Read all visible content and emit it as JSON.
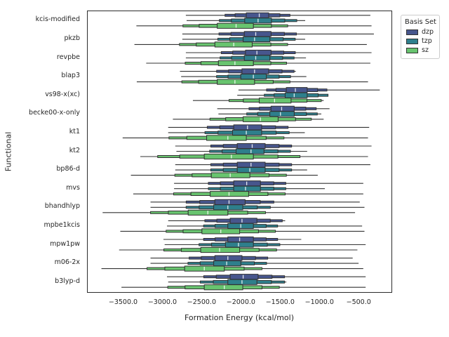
{
  "figure": {
    "background": "#ffffff",
    "spine_color": "#2b2b2b",
    "text_color": "#262626"
  },
  "chart_data": {
    "type": "boxen",
    "orientation": "horizontal",
    "title": "",
    "xlabel": "Formation Energy (kcal/mol)",
    "ylabel": "Functional",
    "grid": false,
    "xlim": [
      -3960,
      -100
    ],
    "xticks": [
      {
        "label": "−3500.0",
        "value": -3500
      },
      {
        "label": "−3000.0",
        "value": -3000
      },
      {
        "label": "−2500.0",
        "value": -2500
      },
      {
        "label": "−2000.0",
        "value": -2000
      },
      {
        "label": "−1500.0",
        "value": -1500
      },
      {
        "label": "−1000.0",
        "value": -1000
      },
      {
        "label": "−500.0",
        "value": -500
      }
    ],
    "categories": [
      "kcis-modified",
      "pkzb",
      "revpbe",
      "blap3",
      "vs98-x(xc)",
      "becke00-x-only",
      "kt1",
      "kt2",
      "bp86-d",
      "mvs",
      "bhandhlyp",
      "mpbe1kcis",
      "mpw1pw",
      "m06-2x",
      "b3lyp-d"
    ],
    "value_keys": [
      "whisker_low",
      "q1",
      "median",
      "q3",
      "whisker_high"
    ],
    "series": [
      {
        "name": "dzp",
        "color": "#47568d",
        "values": [
          [
            -2710,
            -1940,
            -1775,
            -1655,
            -360
          ],
          [
            -2755,
            -1965,
            -1820,
            -1625,
            -315
          ],
          [
            -2710,
            -1950,
            -1805,
            -1625,
            -345
          ],
          [
            -2785,
            -1995,
            -1835,
            -1655,
            -1310
          ],
          [
            -2040,
            -1430,
            -1315,
            -1165,
            -240
          ],
          [
            -2310,
            -1625,
            -1490,
            -1330,
            -880
          ],
          [
            -2935,
            -2100,
            -1925,
            -1745,
            -375
          ],
          [
            -2845,
            -2055,
            -1865,
            -1700,
            -345
          ],
          [
            -2845,
            -2055,
            -1880,
            -1700,
            -360
          ],
          [
            -2860,
            -2100,
            -1935,
            -1760,
            -450
          ],
          [
            -3160,
            -2340,
            -2160,
            -1955,
            -495
          ],
          [
            -2935,
            -2145,
            -1995,
            -1805,
            -1445
          ],
          [
            -2995,
            -2175,
            -2025,
            -1850,
            -1240
          ],
          [
            -3160,
            -2340,
            -2175,
            -1995,
            -585
          ],
          [
            -2950,
            -2145,
            -1980,
            -1790,
            -420
          ]
        ]
      },
      {
        "name": "tzp",
        "color": "#2e7f8c",
        "values": [
          [
            -2700,
            -1960,
            -1790,
            -1620,
            -1190
          ],
          [
            -2755,
            -1980,
            -1835,
            -1640,
            -1190
          ],
          [
            -2710,
            -1965,
            -1820,
            -1640,
            -1180
          ],
          [
            -2770,
            -2010,
            -1850,
            -1685,
            -1175
          ],
          [
            -2055,
            -1445,
            -1330,
            -1165,
            -895
          ],
          [
            -2295,
            -1640,
            -1505,
            -1330,
            -985
          ],
          [
            -2935,
            -2115,
            -1940,
            -1745,
            -1195
          ],
          [
            -2830,
            -2070,
            -1880,
            -1715,
            -1165
          ],
          [
            -2845,
            -2055,
            -1895,
            -1700,
            -1165
          ],
          [
            -2860,
            -2100,
            -1950,
            -1760,
            -940
          ],
          [
            -3160,
            -2355,
            -2175,
            -1985,
            -435
          ],
          [
            -2950,
            -2175,
            -2010,
            -1850,
            -465
          ],
          [
            -2980,
            -2205,
            -2040,
            -1850,
            -420
          ],
          [
            -3160,
            -2355,
            -2190,
            -2010,
            -510
          ],
          [
            -2935,
            -2175,
            -1995,
            -1805,
            -1430
          ]
        ]
      },
      {
        "name": "sz",
        "color": "#68c46f",
        "values": [
          [
            -3340,
            -2310,
            -2070,
            -1850,
            -345
          ],
          [
            -3365,
            -2340,
            -2100,
            -1865,
            -405
          ],
          [
            -3215,
            -2295,
            -2085,
            -1850,
            -360
          ],
          [
            -3335,
            -2310,
            -2085,
            -1835,
            -390
          ],
          [
            -2620,
            -1775,
            -1580,
            -1370,
            -955
          ],
          [
            -2875,
            -1980,
            -1760,
            -1535,
            -955
          ],
          [
            -3515,
            -2445,
            -2175,
            -1940,
            -390
          ],
          [
            -3290,
            -2475,
            -2130,
            -1850,
            -390
          ],
          [
            -3410,
            -2385,
            -2145,
            -1895,
            -1030
          ],
          [
            -3380,
            -2400,
            -2160,
            -1910,
            -450
          ],
          [
            -3770,
            -2680,
            -2430,
            -2175,
            -555
          ],
          [
            -3545,
            -2505,
            -2265,
            -2025,
            -435
          ],
          [
            -3560,
            -2520,
            -2280,
            -2025,
            -525
          ],
          [
            -3785,
            -2725,
            -2475,
            -2220,
            -450
          ],
          [
            -3530,
            -2475,
            -2220,
            -1985,
            -420
          ]
        ]
      }
    ],
    "legend": {
      "title": "Basis Set",
      "position": "upper-right-outside"
    }
  }
}
